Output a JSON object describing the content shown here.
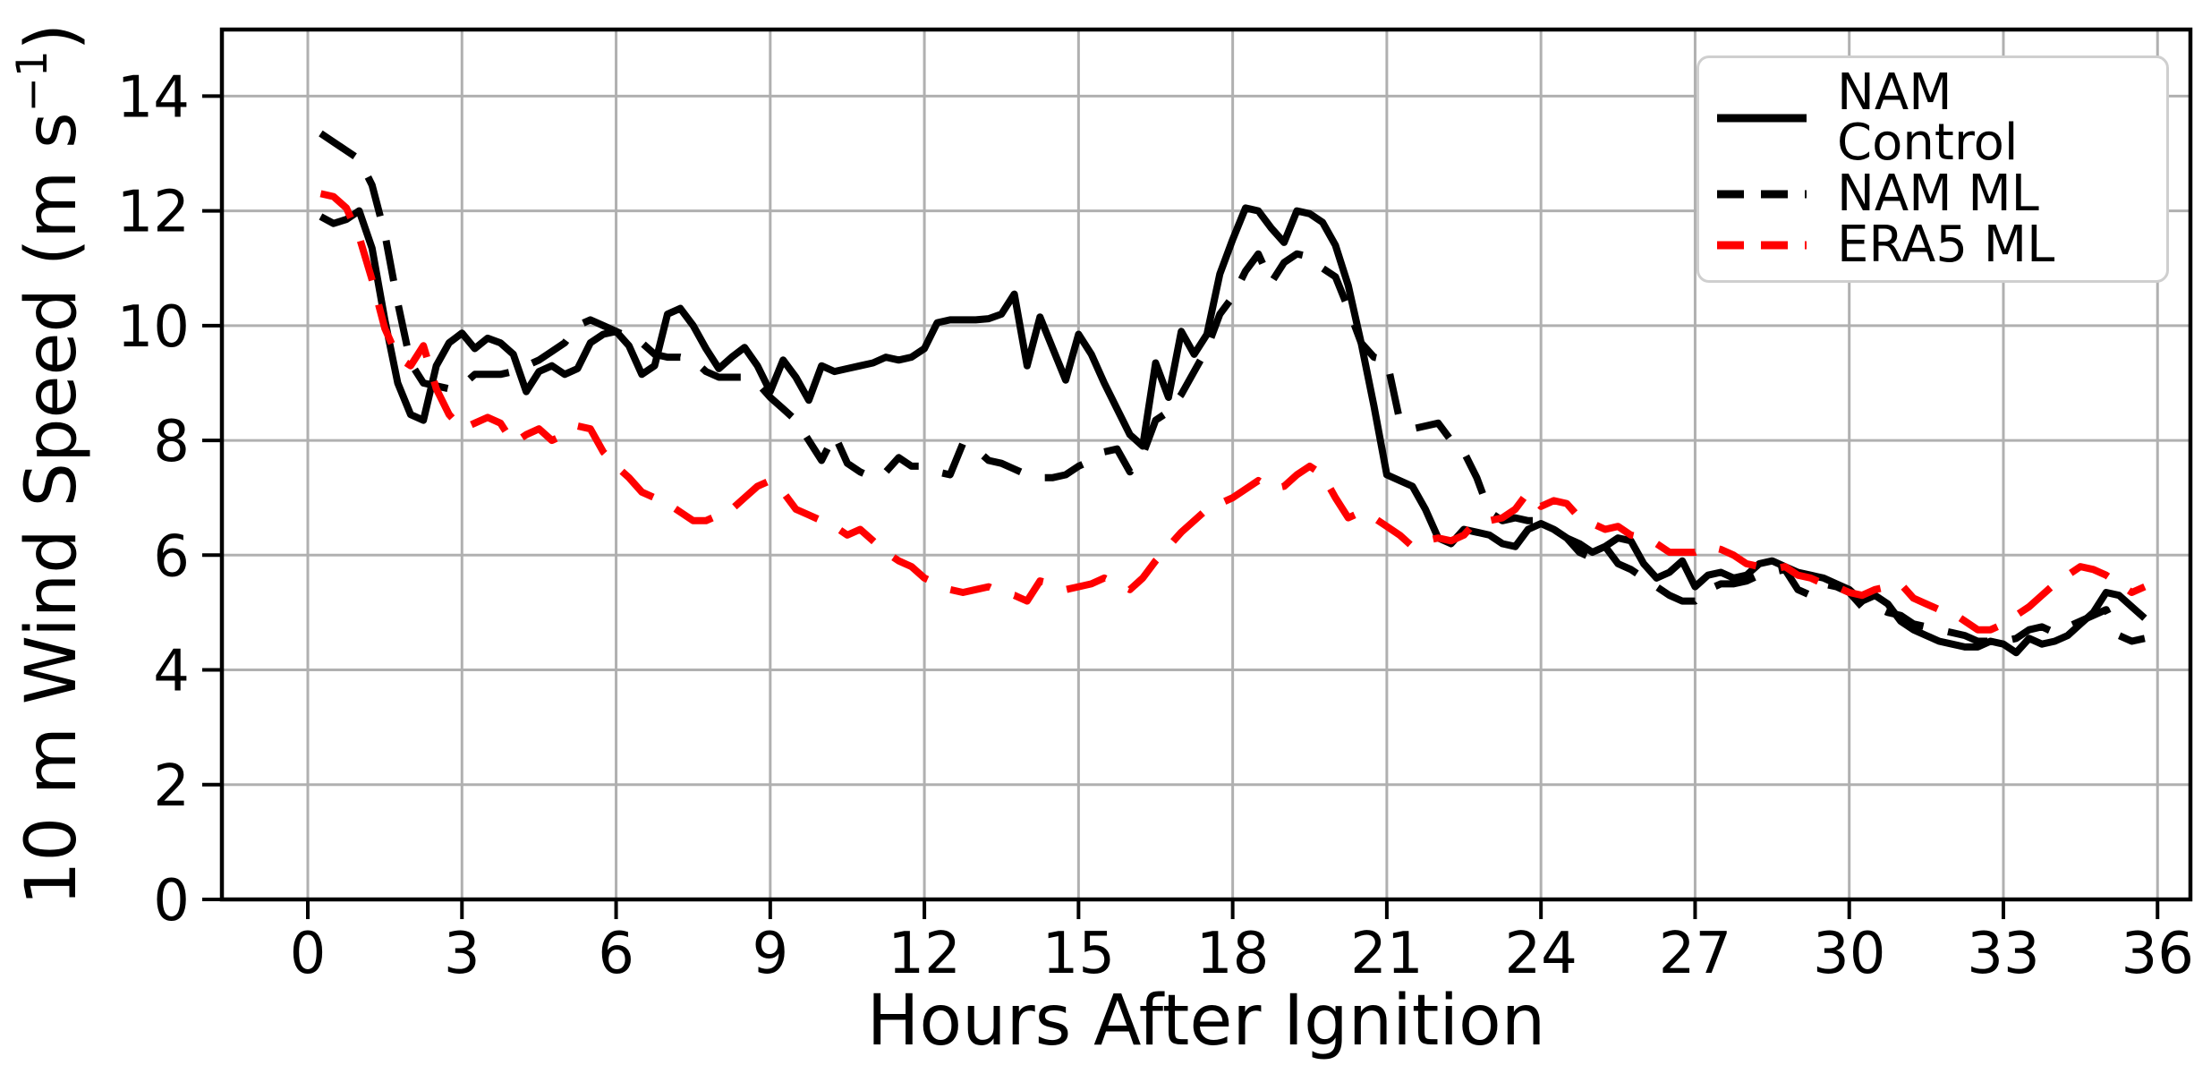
{
  "chart_data": {
    "type": "line",
    "title": "",
    "xlabel": "Hours After Ignition",
    "ylabel": "10 m Wind Speed (m s⁻¹)",
    "ylabel_parts": {
      "prefix": "10 m Wind Speed (m s",
      "superscript": "−1",
      "suffix": ")"
    },
    "xlim": [
      -1.672,
      36.64
    ],
    "ylim": [
      0,
      15.16
    ],
    "xticks": [
      0,
      3,
      6,
      9,
      12,
      15,
      18,
      21,
      24,
      27,
      30,
      33,
      36
    ],
    "yticks": [
      0,
      2,
      4,
      6,
      8,
      10,
      12,
      14
    ],
    "grid": true,
    "grid_color": "#b0b0b0",
    "background_color": "#ffffff",
    "legend_position": "upper right",
    "x_hours": [
      0.25,
      0.5,
      0.75,
      1,
      1.25,
      1.5,
      1.75,
      2,
      2.25,
      2.5,
      2.75,
      3,
      3.25,
      3.5,
      3.75,
      4,
      4.25,
      4.5,
      4.75,
      5,
      5.25,
      5.5,
      5.75,
      6,
      6.25,
      6.5,
      6.75,
      7,
      7.25,
      7.5,
      7.75,
      8,
      8.25,
      8.5,
      8.75,
      9,
      9.25,
      9.5,
      9.75,
      10,
      10.25,
      10.5,
      10.75,
      11,
      11.25,
      11.5,
      11.75,
      12,
      12.25,
      12.5,
      12.75,
      13,
      13.25,
      13.5,
      13.75,
      14,
      14.25,
      14.5,
      14.75,
      15,
      15.25,
      15.5,
      15.75,
      16,
      16.25,
      16.5,
      16.75,
      17,
      17.25,
      17.5,
      17.75,
      18,
      18.25,
      18.5,
      18.75,
      19,
      19.25,
      19.5,
      19.75,
      20,
      20.25,
      20.5,
      20.75,
      21,
      21.25,
      21.5,
      21.75,
      22,
      22.25,
      22.5,
      22.75,
      23,
      23.25,
      23.5,
      23.75,
      24,
      24.25,
      24.5,
      24.75,
      25,
      25.25,
      25.5,
      25.75,
      26,
      26.25,
      26.5,
      26.75,
      27,
      27.25,
      27.5,
      27.75,
      28,
      28.25,
      28.5,
      28.75,
      29,
      29.25,
      29.5,
      29.75,
      30,
      30.25,
      30.5,
      30.75,
      31,
      31.25,
      31.5,
      31.75,
      32,
      32.25,
      32.5,
      32.75,
      33,
      33.25,
      33.5,
      33.75,
      34,
      34.25,
      34.5,
      34.75,
      35,
      35.25,
      35.5,
      35.75
    ],
    "series": [
      {
        "name": "NAM Control",
        "color": "#000000",
        "style": "solid",
        "values": [
          11.9,
          11.78,
          11.85,
          12.0,
          11.35,
          10.1,
          9.0,
          8.45,
          8.35,
          9.3,
          9.7,
          9.87,
          9.6,
          9.78,
          9.7,
          9.5,
          8.85,
          9.2,
          9.3,
          9.15,
          9.25,
          9.7,
          9.85,
          9.9,
          9.65,
          9.15,
          9.3,
          10.2,
          10.3,
          10.0,
          9.6,
          9.25,
          9.45,
          9.62,
          9.3,
          8.85,
          9.4,
          9.1,
          8.7,
          9.3,
          9.2,
          9.25,
          9.3,
          9.35,
          9.45,
          9.4,
          9.45,
          9.6,
          10.05,
          10.1,
          10.1,
          10.1,
          10.12,
          10.2,
          10.55,
          9.3,
          10.15,
          9.6,
          9.05,
          9.85,
          9.5,
          9.0,
          8.55,
          8.1,
          7.9,
          9.35,
          8.75,
          9.9,
          9.5,
          9.85,
          10.9,
          11.5,
          12.05,
          12.0,
          11.7,
          11.45,
          12.0,
          11.95,
          11.8,
          11.4,
          10.7,
          9.7,
          8.6,
          7.4,
          7.3,
          7.2,
          6.8,
          6.3,
          6.2,
          6.45,
          6.4,
          6.35,
          6.2,
          6.15,
          6.45,
          6.55,
          6.45,
          6.3,
          6.2,
          6.05,
          6.15,
          6.3,
          6.25,
          5.85,
          5.6,
          5.7,
          5.9,
          5.45,
          5.65,
          5.7,
          5.6,
          5.65,
          5.85,
          5.9,
          5.8,
          5.7,
          5.65,
          5.6,
          5.5,
          5.4,
          5.2,
          5.3,
          5.15,
          4.85,
          4.7,
          4.6,
          4.5,
          4.45,
          4.4,
          4.4,
          4.5,
          4.45,
          4.3,
          4.55,
          4.45,
          4.5,
          4.6,
          4.8,
          5.0,
          5.35,
          5.3,
          5.1,
          4.9
        ]
      },
      {
        "name": "NAM ML",
        "color": "#000000",
        "style": "dashed",
        "values": [
          13.35,
          13.2,
          13.05,
          12.9,
          12.45,
          11.6,
          10.4,
          9.35,
          9.0,
          8.95,
          8.9,
          8.95,
          9.15,
          9.15,
          9.15,
          9.2,
          9.3,
          9.4,
          9.55,
          9.7,
          10.0,
          10.1,
          10.0,
          9.9,
          9.8,
          9.7,
          9.5,
          9.45,
          9.45,
          9.4,
          9.2,
          9.1,
          9.1,
          9.1,
          9.0,
          8.75,
          8.55,
          8.35,
          8.0,
          7.65,
          8.1,
          7.6,
          7.45,
          7.35,
          7.45,
          7.7,
          7.55,
          7.55,
          7.45,
          7.4,
          7.95,
          7.85,
          7.65,
          7.6,
          7.5,
          7.4,
          7.35,
          7.35,
          7.4,
          7.55,
          7.65,
          7.8,
          7.85,
          7.45,
          7.75,
          8.35,
          8.5,
          8.8,
          9.2,
          9.6,
          10.2,
          10.5,
          10.95,
          11.25,
          10.75,
          11.1,
          11.25,
          11.2,
          11.0,
          10.85,
          10.3,
          9.7,
          9.45,
          9.4,
          8.35,
          8.2,
          8.25,
          8.3,
          8.0,
          7.8,
          7.35,
          6.75,
          6.6,
          6.65,
          6.6,
          6.6,
          6.45,
          6.3,
          6.05,
          5.95,
          6.15,
          5.85,
          5.75,
          5.6,
          5.45,
          5.3,
          5.2,
          5.2,
          5.4,
          5.5,
          5.5,
          5.55,
          5.65,
          5.7,
          5.75,
          5.4,
          5.3,
          5.5,
          5.45,
          5.35,
          5.1,
          5.1,
          5.0,
          4.95,
          4.8,
          4.75,
          4.7,
          4.65,
          4.6,
          4.5,
          4.5,
          4.5,
          4.55,
          4.7,
          4.75,
          4.65,
          4.75,
          4.85,
          4.95,
          5.05,
          4.6,
          4.5,
          4.55
        ]
      },
      {
        "name": "ERA5 ML",
        "color": "#ff0000",
        "style": "dashed",
        "values": [
          12.3,
          12.25,
          12.05,
          11.55,
          10.8,
          9.95,
          9.45,
          9.3,
          9.65,
          8.9,
          8.45,
          8.2,
          8.3,
          8.4,
          8.3,
          7.95,
          8.1,
          8.2,
          8.0,
          8.1,
          8.25,
          8.2,
          7.8,
          7.55,
          7.35,
          7.1,
          7.0,
          6.9,
          6.75,
          6.6,
          6.6,
          6.7,
          6.8,
          7.0,
          7.2,
          7.3,
          7.1,
          6.8,
          6.7,
          6.6,
          6.5,
          6.35,
          6.45,
          6.25,
          6.05,
          5.9,
          5.8,
          5.6,
          5.5,
          5.4,
          5.35,
          5.4,
          5.45,
          5.35,
          5.3,
          5.2,
          5.55,
          5.5,
          5.4,
          5.45,
          5.5,
          5.6,
          5.5,
          5.4,
          5.6,
          5.9,
          6.15,
          6.4,
          6.6,
          6.8,
          6.9,
          7.0,
          7.15,
          7.3,
          7.15,
          7.2,
          7.4,
          7.55,
          7.4,
          7.0,
          6.65,
          6.75,
          6.65,
          6.5,
          6.35,
          6.15,
          6.25,
          6.3,
          6.25,
          6.35,
          6.6,
          6.6,
          6.65,
          6.8,
          7.1,
          6.85,
          6.95,
          6.9,
          6.65,
          6.55,
          6.45,
          6.5,
          6.35,
          6.3,
          6.2,
          6.05,
          6.05,
          6.05,
          6.15,
          6.1,
          6.0,
          5.85,
          5.8,
          5.75,
          5.8,
          5.65,
          5.6,
          5.5,
          5.45,
          5.35,
          5.3,
          5.4,
          5.45,
          5.5,
          5.25,
          5.15,
          5.05,
          5.0,
          4.85,
          4.7,
          4.7,
          4.8,
          4.95,
          5.1,
          5.3,
          5.5,
          5.65,
          5.8,
          5.75,
          5.65,
          5.5,
          5.35,
          5.45
        ]
      }
    ]
  }
}
